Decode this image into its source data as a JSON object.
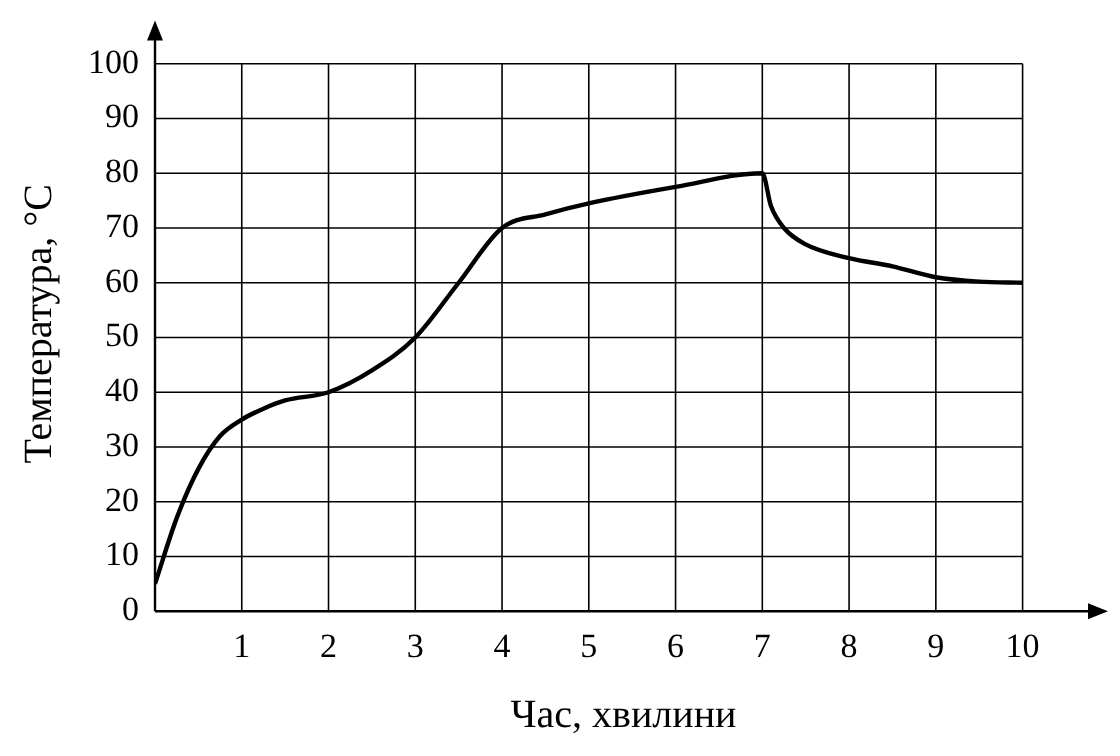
{
  "chart_data": {
    "type": "line",
    "xlabel": "Час, хвилини",
    "ylabel": "Температура, °C",
    "xlim": [
      0,
      10.8
    ],
    "ylim": [
      0,
      105
    ],
    "xticks": [
      1,
      2,
      3,
      4,
      5,
      6,
      7,
      8,
      9,
      10
    ],
    "yticks": [
      0,
      10,
      20,
      30,
      40,
      50,
      60,
      70,
      80,
      90,
      100
    ],
    "grid": true,
    "legend": false,
    "marker": "none",
    "line_style": "solid",
    "series": [
      {
        "color": "#000000",
        "x": [
          0,
          0.25,
          0.5,
          0.75,
          1,
          1.25,
          1.5,
          2,
          2.5,
          3,
          3.5,
          4,
          4.5,
          5,
          6,
          7,
          7.1,
          7.25,
          7.5,
          8,
          8.5,
          9,
          9.5,
          10
        ],
        "values": [
          5,
          17,
          26,
          32,
          35,
          37,
          38.5,
          40,
          44,
          50,
          60,
          70,
          72.5,
          74.5,
          77.5,
          80,
          74,
          70,
          67,
          64.5,
          63,
          61,
          60.2,
          60
        ]
      }
    ]
  }
}
